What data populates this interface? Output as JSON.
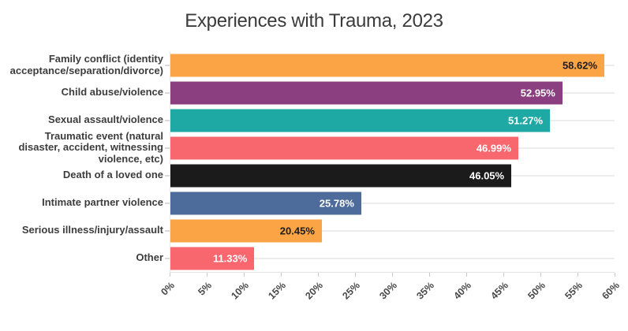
{
  "chart_data": {
    "type": "bar",
    "orientation": "horizontal",
    "title": "Experiences with Trauma, 2023",
    "xlabel": "",
    "ylabel": "",
    "xlim": [
      0,
      60
    ],
    "grid": "horizontal row lines, light gray",
    "legend": "none",
    "x_tick_labels": [
      "0%",
      "5%",
      "10%",
      "15%",
      "20%",
      "25%",
      "30%",
      "35%",
      "40%",
      "45%",
      "50%",
      "55%",
      "60%"
    ],
    "categories": [
      "Family conflict (identity acceptance/separation/divorce)",
      "Child abuse/violence",
      "Sexual assault/violence",
      "Traumatic event (natural disaster, accident, witnessing violence, etc)",
      "Death of a loved one",
      "Intimate partner violence",
      "Serious illness/injury/assault",
      "Other"
    ],
    "values": [
      58.62,
      52.95,
      51.27,
      46.99,
      46.05,
      25.78,
      20.45,
      11.33
    ],
    "bars": [
      {
        "label": "Family conflict (identity acceptance/separation/divorce)",
        "value": 58.62,
        "value_label": "58.62%",
        "color": "#FBA445",
        "text_color": "#1c1c1c"
      },
      {
        "label": "Child abuse/violence",
        "value": 52.95,
        "value_label": "52.95%",
        "color": "#8C3F80",
        "text_color": "#ffffff"
      },
      {
        "label": "Sexual assault/violence",
        "value": 51.27,
        "value_label": "51.27%",
        "color": "#1FA9A5",
        "text_color": "#ffffff"
      },
      {
        "label": "Traumatic event (natural disaster, accident, witnessing violence, etc)",
        "value": 46.99,
        "value_label": "46.99%",
        "color": "#F9676E",
        "text_color": "#ffffff"
      },
      {
        "label": "Death of a loved one",
        "value": 46.05,
        "value_label": "46.05%",
        "color": "#1b1b1b",
        "text_color": "#ffffff"
      },
      {
        "label": "Intimate partner violence",
        "value": 25.78,
        "value_label": "25.78%",
        "color": "#4D6C9B",
        "text_color": "#ffffff"
      },
      {
        "label": "Serious illness/injury/assault",
        "value": 20.45,
        "value_label": "20.45%",
        "color": "#FBA445",
        "text_color": "#1c1c1c"
      },
      {
        "label": "Other",
        "value": 11.33,
        "value_label": "11.33%",
        "color": "#F9676E",
        "text_color": "#ffffff"
      }
    ],
    "colors": {
      "gridline": "#ededed",
      "axis_line": "#e3e3e3",
      "tick": "#c9c9c9",
      "category_label": "#3d3d3d",
      "tick_label": "#4a4a4a",
      "title": "#3b3b3b"
    }
  }
}
